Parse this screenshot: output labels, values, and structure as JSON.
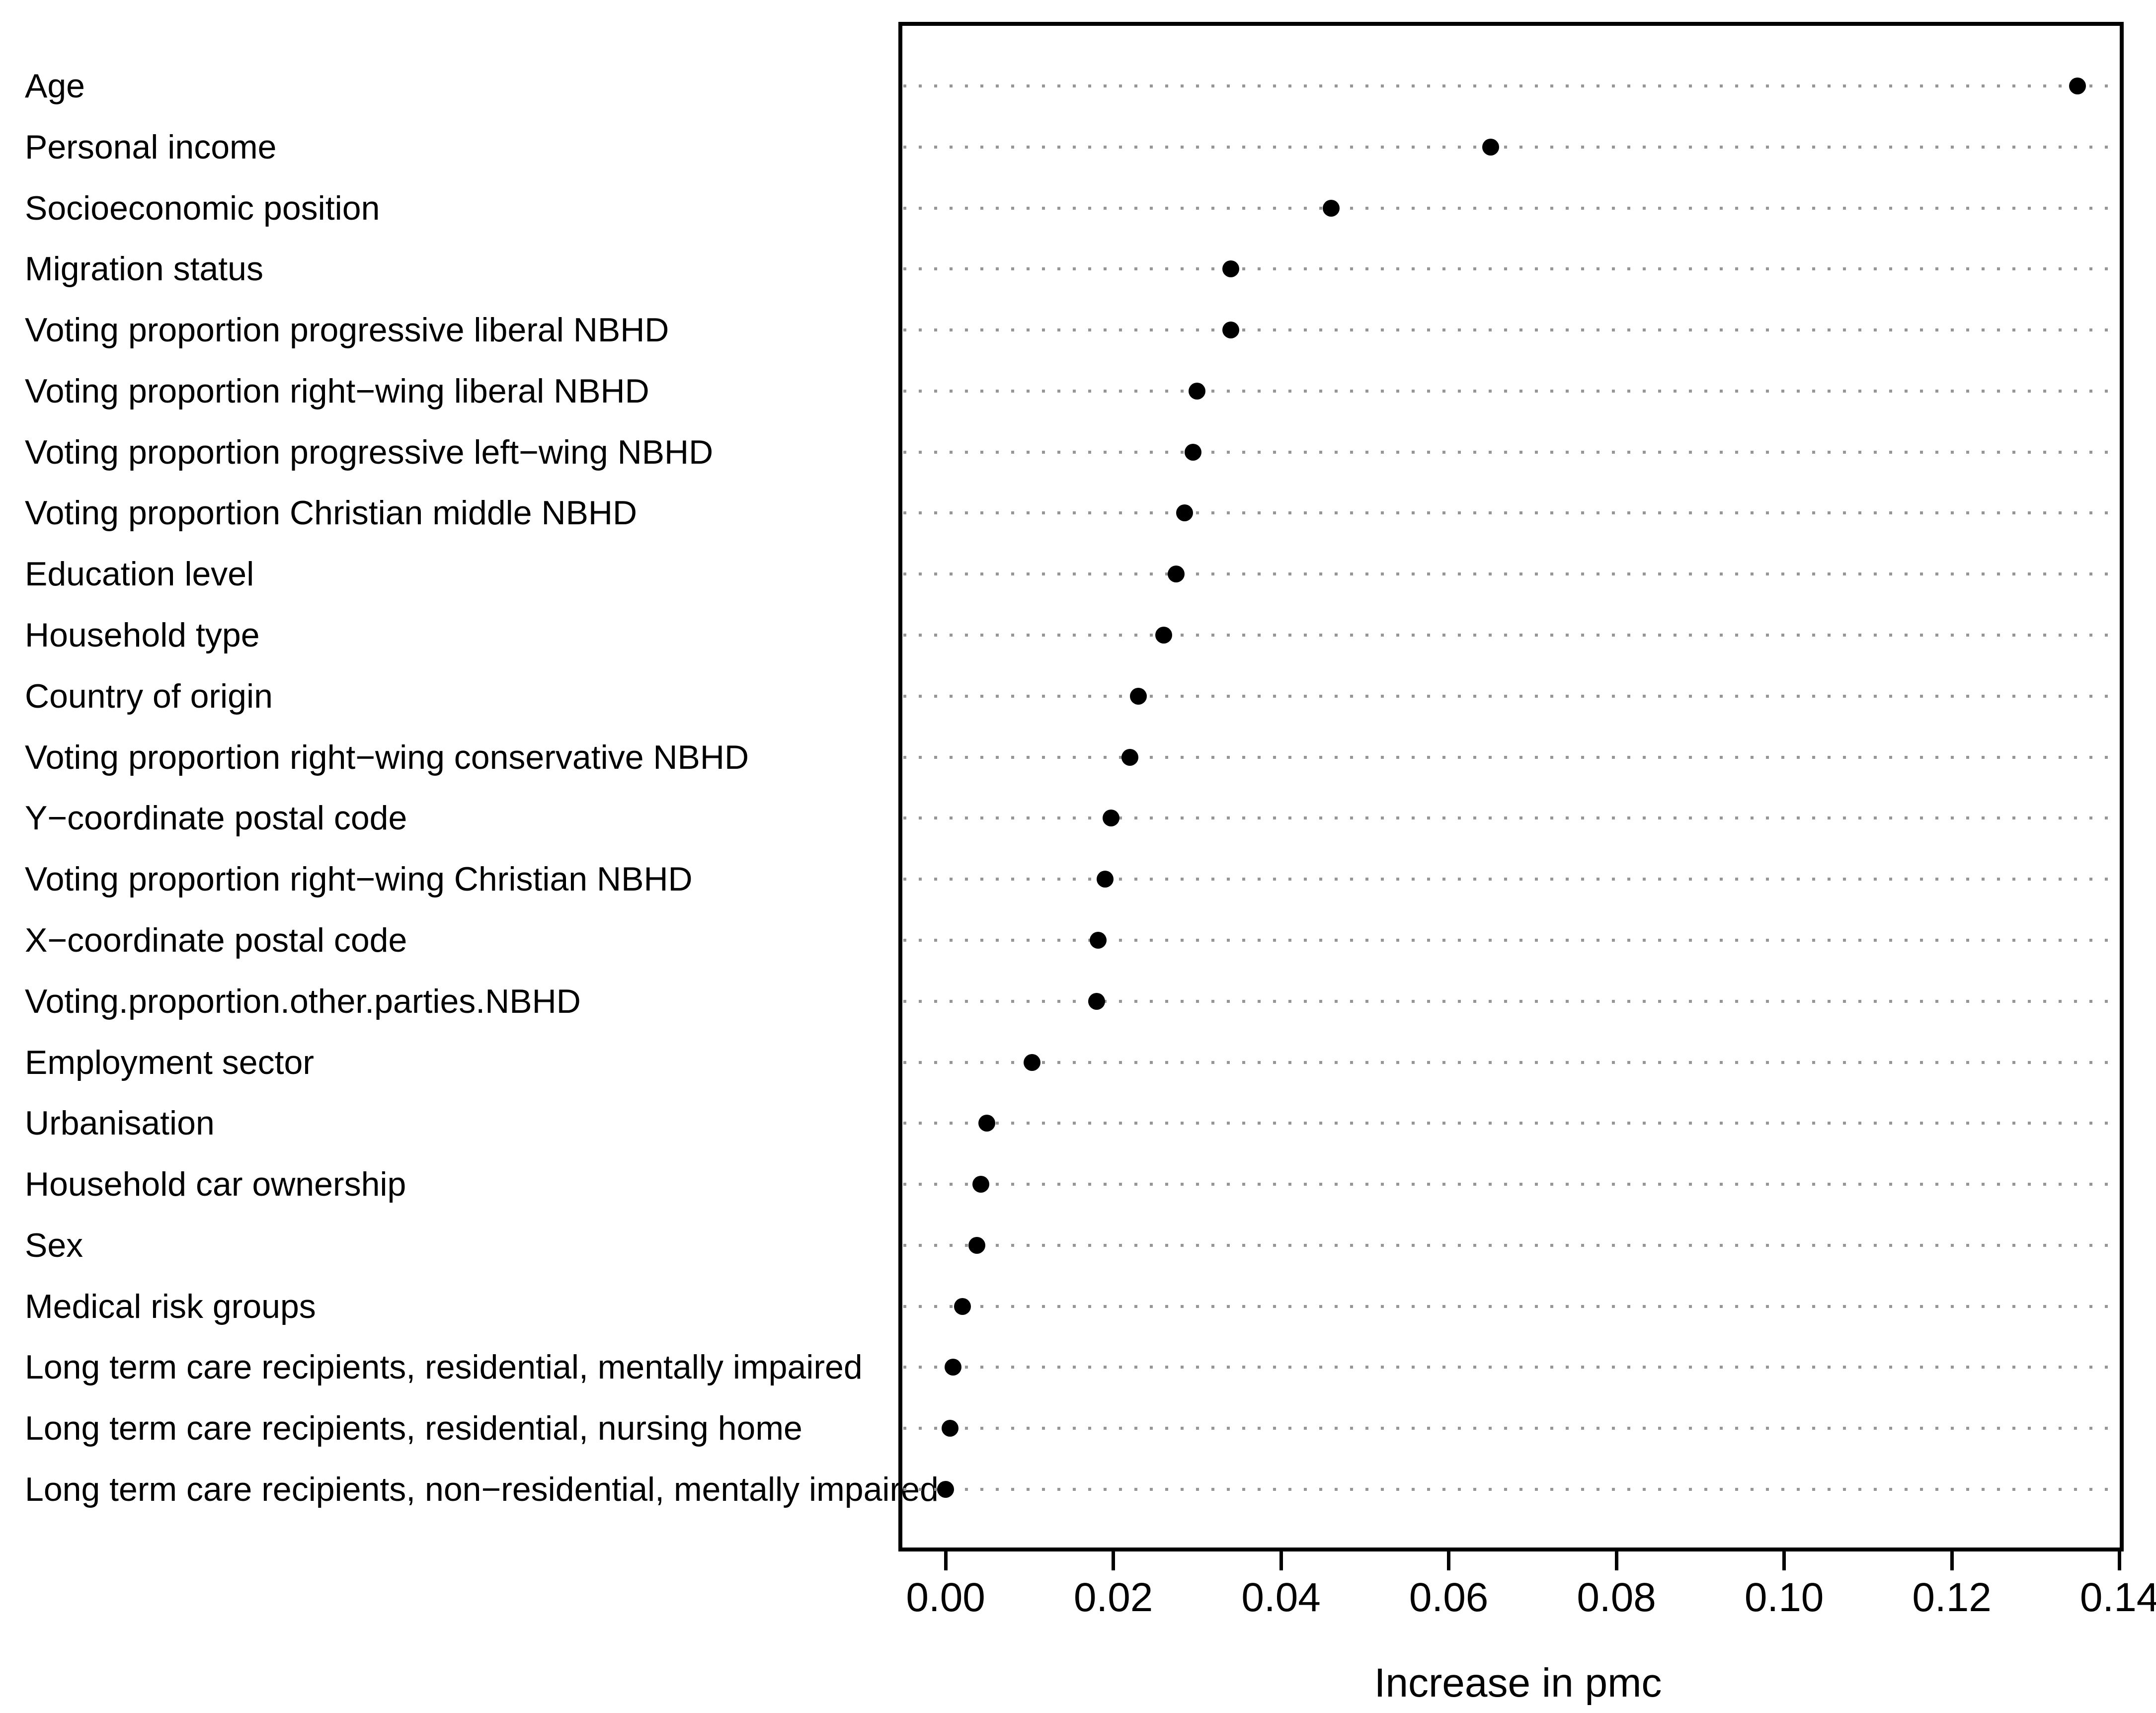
{
  "figure": {
    "background": "#ffffff"
  },
  "colors": {
    "foreground": "#000000",
    "dot": "#000000",
    "gridline": "#969696",
    "panel_border": "#000000"
  },
  "chart_data": {
    "type": "scatter",
    "subtype": "cleveland-dot-plot",
    "title": "",
    "xlabel": "Increase in pmc",
    "ylabel": "",
    "xlim": [
      -0.0054,
      0.1402
    ],
    "x_ticks": [
      0.0,
      0.02,
      0.04,
      0.06,
      0.08,
      0.1,
      0.12,
      0.14
    ],
    "x_tick_labels": [
      "0.00",
      "0.02",
      "0.04",
      "0.06",
      "0.08",
      "0.10",
      "0.12",
      "0.14"
    ],
    "grid": "dotted horizontal guide per category row",
    "legend": "none",
    "categories": [
      "Age",
      "Personal income",
      "Socioeconomic position",
      "Migration status",
      "Voting proportion progressive liberal NBHD",
      "Voting proportion right−wing liberal NBHD",
      "Voting proportion progressive left−wing NBHD",
      "Voting proportion Christian middle NBHD",
      "Education level",
      "Household type",
      "Country of origin",
      "Voting proportion right−wing conservative NBHD",
      "Y−coordinate postal code",
      "Voting proportion right−wing Christian NBHD",
      "X−coordinate postal code",
      "Voting.proportion.other.parties.NBHD",
      "Employment sector",
      "Urbanisation",
      "Household car ownership",
      "Sex",
      "Medical risk groups",
      "Long term care recipients, residential, mentally impaired",
      "Long term care recipients, residential, nursing home",
      "Long term care recipients, non−residential, mentally impaired"
    ],
    "values": [
      0.135,
      0.065,
      0.046,
      0.034,
      0.034,
      0.03,
      0.0295,
      0.0285,
      0.0275,
      0.026,
      0.023,
      0.022,
      0.0197,
      0.019,
      0.0182,
      0.018,
      0.0103,
      0.0049,
      0.0042,
      0.0037,
      0.002,
      0.0009,
      0.0005,
      0.0
    ]
  }
}
